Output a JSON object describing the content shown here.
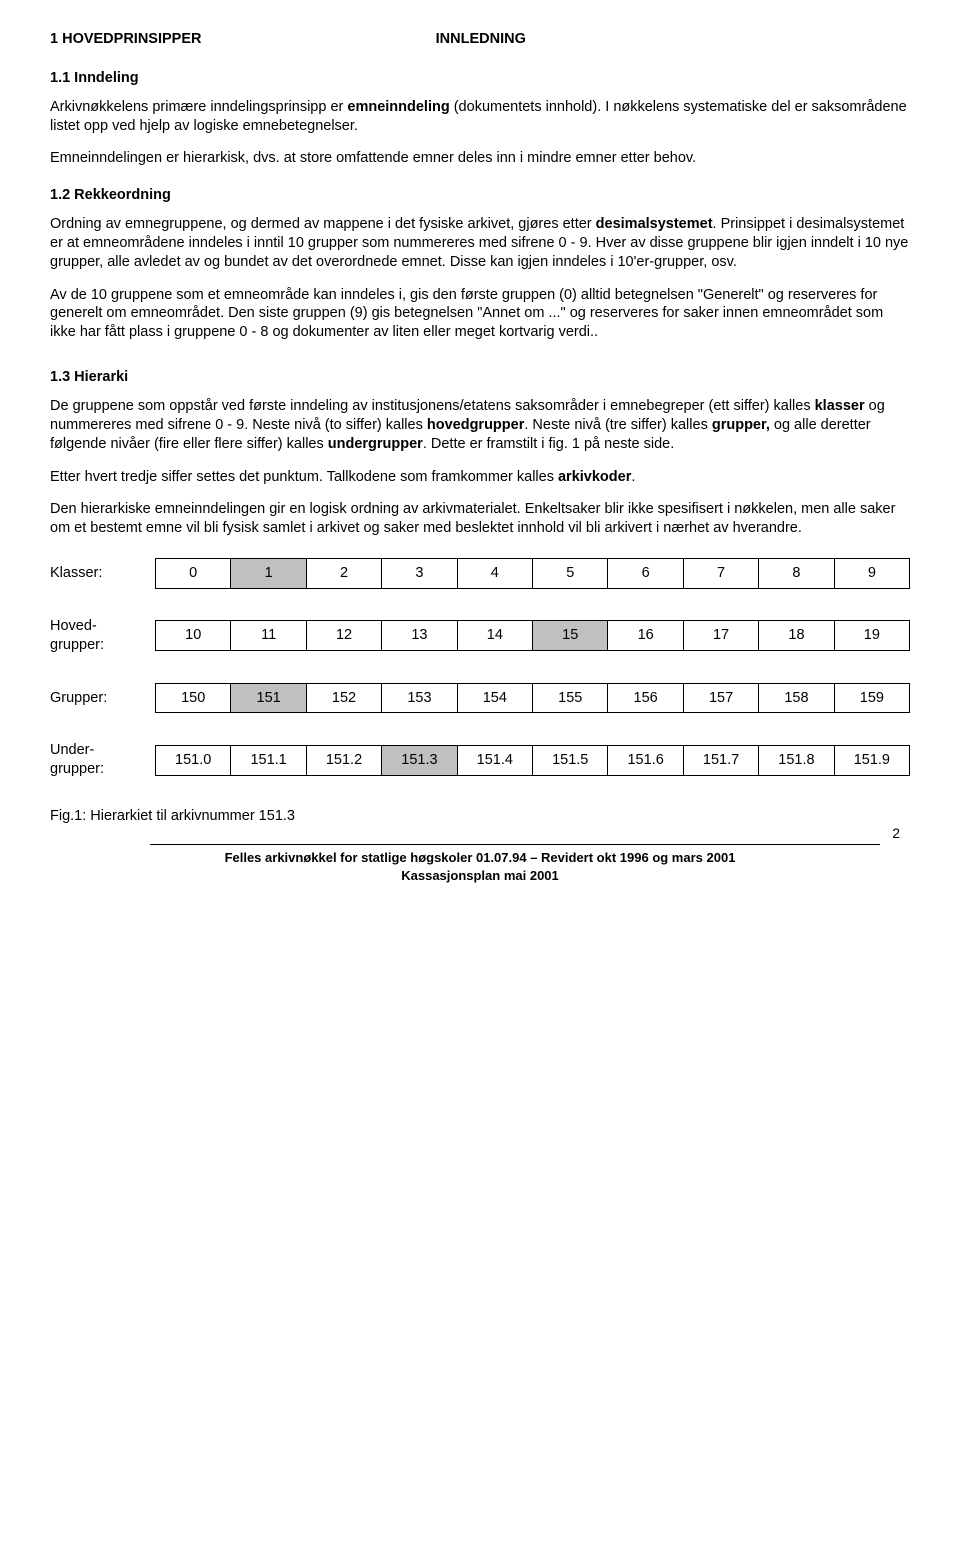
{
  "header": {
    "left": "1     HOVEDPRINSIPPER",
    "center": "INNLEDNING"
  },
  "s11": {
    "heading": "1.1  Inndeling",
    "p1a": "Arkivnøkkelens primære inndelingsprinsipp er ",
    "p1b": "emneinndeling",
    "p1c": " (dokumentets innhold).  I nøkkelens systematiske del er saksområdene listet opp ved hjelp av logiske emnebetegnelser.",
    "p2": "Emneinndelingen er hierarkisk, dvs. at store omfattende emner deles inn i mindre emner etter behov."
  },
  "s12": {
    "heading": "1.2  Rekkeordning",
    "p1a": "Ordning av emnegruppene, og dermed av mappene i det fysiske arkivet, gjøres etter ",
    "p1b": "desimalsystemet",
    "p1c": ".  Prinsippet i desimalsystemet er at emneområdene inndeles i inntil 10 grupper som nummereres med sifrene 0 - 9.  Hver av disse gruppene blir igjen inndelt i 10 nye grupper, alle avledet av og bundet av det overordnede emnet.  Disse kan igjen inndeles i 10'er-grupper, osv.",
    "p2": "Av de 10 gruppene som et emneområde kan inndeles i, gis den første gruppen (0) alltid betegnelsen \"Generelt\" og reserveres for generelt om emneområdet.  Den siste gruppen (9) gis betegnelsen \"Annet om ...\" og reserveres for saker innen emneområdet som ikke har fått plass i gruppene 0 - 8 og dokumenter av liten eller meget kortvarig verdi.."
  },
  "s13": {
    "heading": "1.3  Hierarki",
    "p1a": "De gruppene som oppstår ved første inndeling av institusjonens/etatens saksområder i emnebegreper (ett siffer) kalles ",
    "p1b": "klasser",
    "p1c": " og nummereres med sifrene 0 - 9.  Neste nivå (to siffer) kalles ",
    "p1d": "hovedgrupper",
    "p1e": ".  Neste nivå (tre siffer) kalles ",
    "p1f": "grupper,",
    "p1g": " og alle deretter følgende nivåer (fire eller flere siffer) kalles ",
    "p1h": "undergrupper",
    "p1i": ".  Dette er framstilt i fig. 1 på neste side.",
    "p2a": "Etter hvert tredje siffer settes det punktum.  Tallkodene som framkommer kalles  ",
    "p2b": "arkivkoder",
    "p2c": ".",
    "p3": "Den hierarkiske emneinndelingen gir en logisk ordning av arkivmaterialet.  Enkeltsaker blir ikke spesifisert i nøkkelen, men alle saker om et bestemt emne vil bli fysisk samlet i arkivet og saker med beslektet innhold vil bli arkivert i nærhet av hverandre."
  },
  "hierarchy": {
    "rows": [
      {
        "label": "Klasser:",
        "cells": [
          "0",
          "1",
          "2",
          "3",
          "4",
          "5",
          "6",
          "7",
          "8",
          "9"
        ],
        "highlight": 1
      },
      {
        "label": "Hoved-\ngrupper:",
        "cells": [
          "10",
          "11",
          "12",
          "13",
          "14",
          "15",
          "16",
          "17",
          "18",
          "19"
        ],
        "highlight": 5
      },
      {
        "label": "Grupper:",
        "cells": [
          "150",
          "151",
          "152",
          "153",
          "154",
          "155",
          "156",
          "157",
          "158",
          "159"
        ],
        "highlight": 1
      },
      {
        "label": "Under-\ngrupper:",
        "cells": [
          "151.0",
          "151.1",
          "151.2",
          "151.3",
          "151.4",
          "151.5",
          "151.6",
          "151.7",
          "151.8",
          "151.9"
        ],
        "highlight": 3
      }
    ],
    "caption": "Fig.1:   Hierarkiet til arkivnummer 151.3"
  },
  "footer": {
    "page": "2",
    "line1": "Felles arkivnøkkel for statlige høgskoler 01.07.94 – Revidert okt 1996 og mars 2001",
    "line2": "Kassasjonsplan mai  2001"
  }
}
